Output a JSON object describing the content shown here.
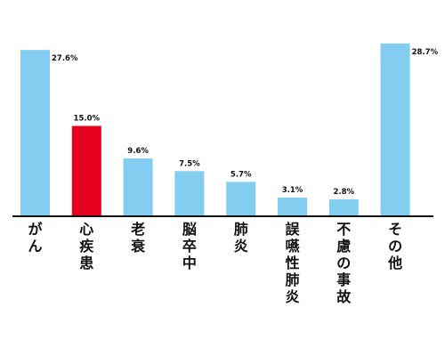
{
  "chart_data": {
    "type": "bar",
    "title": "",
    "xlabel": "",
    "ylabel": "",
    "ylim": [
      0,
      30
    ],
    "grid": false,
    "legend": "none",
    "categories": [
      "がん",
      "心疾患",
      "老衰",
      "脳卒中",
      "肺炎",
      "誤嚥性肺炎",
      "不慮の事故",
      "その他"
    ],
    "values": [
      27.6,
      15.0,
      9.6,
      7.5,
      5.7,
      3.1,
      2.8,
      28.7
    ],
    "value_labels": [
      "27.6%",
      "15.0%",
      "9.6%",
      "7.5%",
      "5.7%",
      "3.1%",
      "2.8%",
      "28.7%"
    ],
    "highlight_index": 1,
    "colors": {
      "bar": "#83cdf1",
      "highlight": "#e6001f",
      "axis": "#111111",
      "text": "#111111"
    }
  }
}
